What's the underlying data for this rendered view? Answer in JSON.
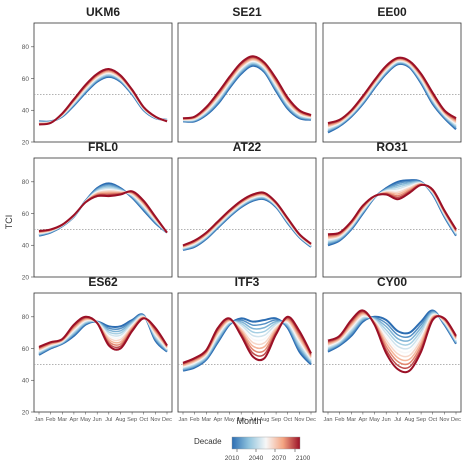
{
  "chart_data": {
    "type": "line",
    "ylabel": "TCI",
    "xlabel": "Month",
    "months": [
      "Jan",
      "Feb",
      "Mar",
      "Apr",
      "May",
      "Jun",
      "Jul",
      "Aug",
      "Sep",
      "Oct",
      "Nov",
      "Dec"
    ],
    "ylim": [
      20,
      95
    ],
    "yticks": [
      20,
      40,
      60,
      80
    ],
    "reference_line": 50,
    "legend": {
      "title": "Decade",
      "ticks": [
        "2010",
        "2040",
        "2070",
        "2100"
      ],
      "colors": [
        "#2c6db2",
        "#92c5de",
        "#f7f7f7",
        "#f4a582",
        "#9b1026"
      ]
    },
    "panels": [
      {
        "title": "UKM6",
        "first": [
          33,
          33,
          36,
          43,
          51,
          58,
          61,
          58,
          50,
          40,
          35,
          34
        ],
        "last": [
          31,
          32,
          38,
          47,
          56,
          63,
          66,
          62,
          53,
          42,
          36,
          33
        ]
      },
      {
        "title": "SE21",
        "first": [
          33,
          33,
          37,
          44,
          54,
          63,
          68,
          64,
          52,
          41,
          35,
          34
        ],
        "last": [
          35,
          36,
          42,
          51,
          61,
          70,
          74,
          70,
          60,
          48,
          40,
          37
        ]
      },
      {
        "title": "EE00",
        "first": [
          26,
          30,
          36,
          44,
          54,
          63,
          69,
          67,
          57,
          44,
          35,
          28
        ],
        "last": [
          32,
          34,
          40,
          49,
          59,
          68,
          73,
          71,
          63,
          51,
          40,
          35
        ]
      },
      {
        "title": "FRL0",
        "first": [
          46,
          48,
          52,
          58,
          68,
          76,
          79,
          76,
          70,
          62,
          54,
          48
        ],
        "last": [
          49,
          50,
          53,
          59,
          67,
          71,
          71,
          72,
          74,
          68,
          58,
          48
        ]
      },
      {
        "title": "AT22",
        "first": [
          37,
          39,
          44,
          51,
          58,
          64,
          68,
          69,
          64,
          54,
          45,
          39
        ],
        "last": [
          40,
          43,
          48,
          55,
          62,
          68,
          72,
          73,
          67,
          57,
          47,
          41
        ]
      },
      {
        "title": "RO31",
        "first": [
          40,
          43,
          50,
          60,
          70,
          76,
          80,
          81,
          80,
          72,
          58,
          46
        ],
        "last": [
          47,
          48,
          55,
          65,
          71,
          72,
          69,
          73,
          78,
          75,
          62,
          50
        ]
      },
      {
        "title": "ES62",
        "first": [
          56,
          60,
          63,
          68,
          75,
          77,
          74,
          74,
          78,
          81,
          65,
          58
        ],
        "last": [
          61,
          64,
          66,
          75,
          80,
          76,
          62,
          60,
          71,
          79,
          73,
          62
        ]
      },
      {
        "title": "ITF3",
        "first": [
          46,
          48,
          53,
          64,
          75,
          79,
          77,
          78,
          79,
          73,
          58,
          50
        ],
        "last": [
          51,
          54,
          59,
          73,
          79,
          68,
          55,
          54,
          69,
          80,
          71,
          57
        ]
      },
      {
        "title": "CY00",
        "first": [
          58,
          62,
          68,
          77,
          80,
          78,
          71,
          70,
          77,
          84,
          75,
          63
        ],
        "last": [
          65,
          68,
          78,
          84,
          75,
          57,
          47,
          46,
          58,
          78,
          79,
          68
        ]
      }
    ]
  }
}
